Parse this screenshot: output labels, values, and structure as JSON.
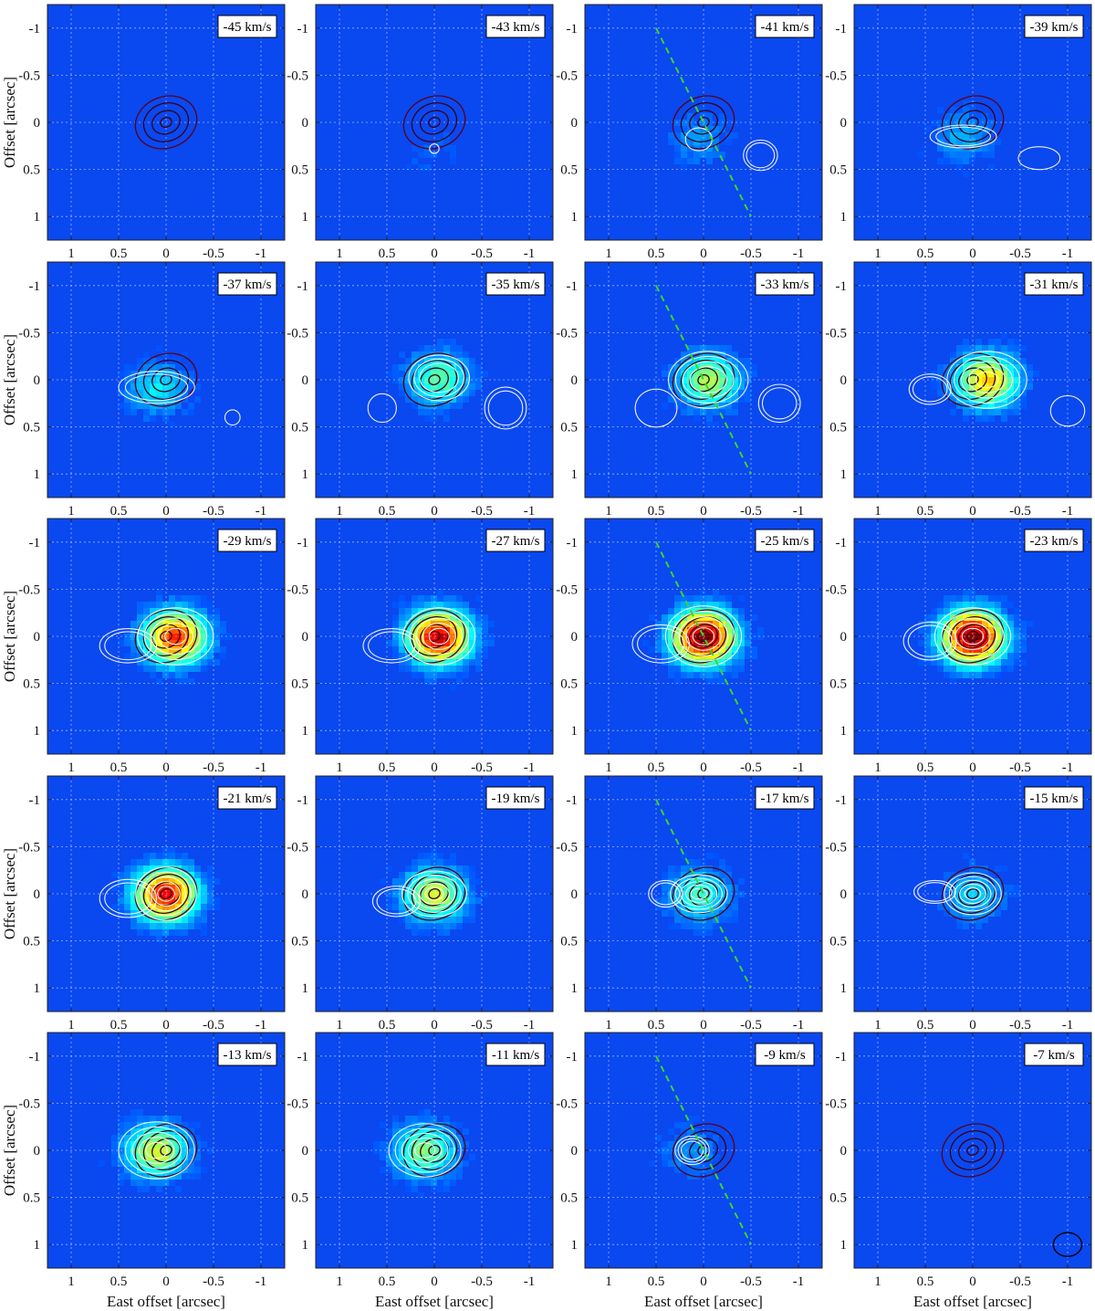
{
  "chart_data": {
    "type": "heatmap",
    "title": "",
    "xlabel": "East offset [arcsec]",
    "ylabel": "Offset [arcsec]",
    "xlim": [
      1.25,
      -1.25
    ],
    "ylim": [
      -1.25,
      1.25
    ],
    "x_ticks": [
      1,
      0.5,
      0,
      -0.5,
      -1
    ],
    "x_tick_labels": [
      "1",
      "0.5",
      "0",
      "-0.5",
      "-1"
    ],
    "y_ticks": [
      -1,
      -0.5,
      0,
      0.5,
      1
    ],
    "y_tick_labels": [
      "-1",
      "-0.5",
      "0",
      "0.5",
      "1"
    ],
    "grid": true,
    "colormap": "jet",
    "colors": {
      "background": "#0a48f0",
      "grid": "#bcd0ff",
      "emission_contours": "#ffffff",
      "continuum_contours": "#3a0012",
      "axis_line": "#3cd62a"
    },
    "axis_line": {
      "x": [
        0.5,
        -0.5
      ],
      "y": [
        -1.0,
        1.0
      ]
    },
    "beam": {
      "x": -1.0,
      "y": 1.0,
      "major": 0.3,
      "minor": 0.25
    },
    "panels": [
      {
        "label": "-45 km/s",
        "axis_line": false,
        "peak": 0.0,
        "blobs": []
      },
      {
        "label": "-43 km/s",
        "axis_line": false,
        "peak": 0.05,
        "blobs": [
          [
            0.0,
            0.28,
            0.05,
            0.05,
            0.2
          ]
        ]
      },
      {
        "label": "-41 km/s",
        "axis_line": true,
        "peak": 0.12,
        "blobs": [
          [
            0.05,
            0.18,
            0.14,
            0.12,
            0.25
          ],
          [
            -0.6,
            0.35,
            0.18,
            0.16,
            0.3
          ]
        ]
      },
      {
        "label": "-39 km/s",
        "axis_line": false,
        "peak": 0.15,
        "blobs": [
          [
            0.1,
            0.15,
            0.35,
            0.12,
            0.3
          ],
          [
            -0.7,
            0.38,
            0.22,
            0.12,
            0.25
          ]
        ]
      },
      {
        "label": "-37 km/s",
        "axis_line": false,
        "peak": 0.22,
        "blobs": [
          [
            0.1,
            0.08,
            0.4,
            0.17,
            0.35
          ],
          [
            -0.7,
            0.4,
            0.08,
            0.08,
            0.2
          ]
        ]
      },
      {
        "label": "-35 km/s",
        "axis_line": false,
        "peak": 0.35,
        "blobs": [
          [
            -0.05,
            -0.02,
            0.32,
            0.24,
            0.5
          ],
          [
            0.55,
            0.3,
            0.15,
            0.15,
            0.2
          ],
          [
            -0.75,
            0.3,
            0.22,
            0.22,
            0.35
          ]
        ]
      },
      {
        "label": "-33 km/s",
        "axis_line": true,
        "peak": 0.45,
        "blobs": [
          [
            -0.05,
            0.0,
            0.42,
            0.3,
            0.8
          ],
          [
            0.5,
            0.3,
            0.22,
            0.2,
            0.25
          ],
          [
            -0.8,
            0.25,
            0.22,
            0.2,
            0.35
          ]
        ]
      },
      {
        "label": "-31 km/s",
        "axis_line": false,
        "peak": 0.6,
        "blobs": [
          [
            -0.15,
            0.0,
            0.42,
            0.3,
            1.0
          ],
          [
            0.45,
            0.1,
            0.22,
            0.16,
            0.3
          ],
          [
            -1.0,
            0.33,
            0.18,
            0.16,
            0.25
          ]
        ]
      },
      {
        "label": "-29 km/s",
        "axis_line": false,
        "peak": 0.78,
        "blobs": [
          [
            -0.1,
            0.0,
            0.4,
            0.3,
            1.0
          ],
          [
            0.4,
            0.1,
            0.3,
            0.18,
            0.4
          ]
        ]
      },
      {
        "label": "-27 km/s",
        "axis_line": false,
        "peak": 0.9,
        "blobs": [
          [
            -0.05,
            0.0,
            0.38,
            0.3,
            1.0
          ],
          [
            0.45,
            0.1,
            0.3,
            0.18,
            0.35
          ]
        ]
      },
      {
        "label": "-25 km/s",
        "axis_line": true,
        "peak": 1.0,
        "blobs": [
          [
            0.0,
            0.0,
            0.4,
            0.32,
            1.0
          ],
          [
            0.45,
            0.08,
            0.3,
            0.2,
            0.4
          ]
        ]
      },
      {
        "label": "-23 km/s",
        "axis_line": false,
        "peak": 1.0,
        "blobs": [
          [
            0.0,
            0.0,
            0.4,
            0.3,
            1.0
          ],
          [
            0.45,
            0.05,
            0.28,
            0.2,
            0.35
          ]
        ]
      },
      {
        "label": "-21 km/s",
        "axis_line": false,
        "peak": 0.85,
        "blobs": [
          [
            0.0,
            0.0,
            0.32,
            0.28,
            1.0
          ],
          [
            0.4,
            0.05,
            0.3,
            0.2,
            0.35
          ]
        ]
      },
      {
        "label": "-19 km/s",
        "axis_line": false,
        "peak": 0.5,
        "blobs": [
          [
            0.0,
            0.0,
            0.34,
            0.24,
            1.0
          ],
          [
            0.4,
            0.08,
            0.25,
            0.16,
            0.3
          ]
        ]
      },
      {
        "label": "-17 km/s",
        "axis_line": true,
        "peak": 0.3,
        "blobs": [
          [
            0.05,
            0.0,
            0.3,
            0.2,
            1.0
          ],
          [
            0.4,
            0.0,
            0.18,
            0.14,
            0.3
          ]
        ]
      },
      {
        "label": "-15 km/s",
        "axis_line": false,
        "peak": 0.2,
        "blobs": [
          [
            0.0,
            0.0,
            0.3,
            0.22,
            1.0
          ],
          [
            0.4,
            -0.02,
            0.22,
            0.12,
            0.3
          ]
        ]
      },
      {
        "label": "-13 km/s",
        "axis_line": false,
        "peak": 0.5,
        "blobs": [
          [
            0.1,
            0.0,
            0.4,
            0.3,
            1.0
          ]
        ]
      },
      {
        "label": "-11 km/s",
        "axis_line": false,
        "peak": 0.4,
        "blobs": [
          [
            0.1,
            0.0,
            0.38,
            0.28,
            1.0
          ]
        ]
      },
      {
        "label": "-9 km/s",
        "axis_line": true,
        "peak": 0.12,
        "blobs": [
          [
            0.12,
            0.0,
            0.18,
            0.15,
            0.5
          ]
        ]
      },
      {
        "label": "-7 km/s",
        "axis_line": false,
        "peak": 0.0,
        "blobs": [],
        "beam": true
      }
    ]
  }
}
